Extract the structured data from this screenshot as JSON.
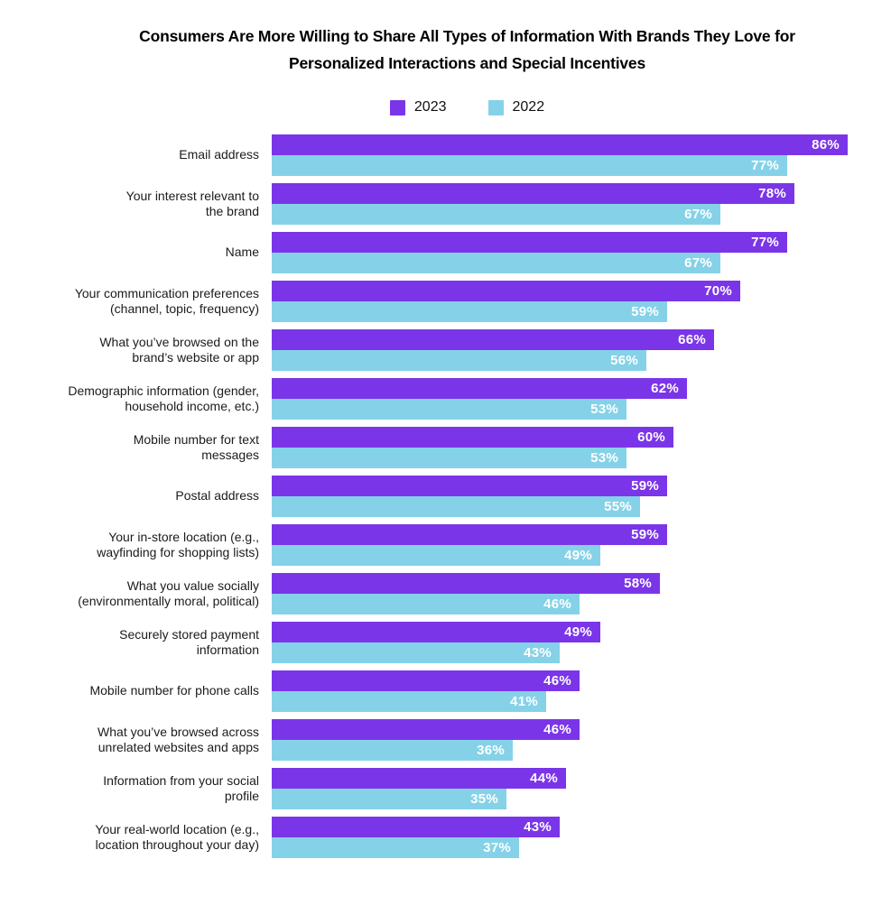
{
  "title": "Consumers Are More Willing to Share All Types of Information With Brands They Love for Personalized Interactions and Special Incentives",
  "legend": [
    {
      "label": "2023",
      "color": "#7B35E8"
    },
    {
      "label": "2022",
      "color": "#85D2E8"
    }
  ],
  "chart_data": {
    "type": "bar",
    "orientation": "horizontal",
    "title": "Consumers Are More Willing to Share All Types of Information With Brands They Love for Personalized Interactions and Special Incentives",
    "legend_position": "top",
    "grid": false,
    "value_labels": "inside-end",
    "value_suffix": "%",
    "xlim": [
      0,
      86
    ],
    "categories": [
      "Email address",
      "Your interest relevant to\nthe brand",
      "Name",
      "Your communication preferences\n(channel, topic, frequency)",
      "What you’ve browsed on the\nbrand’s website or app",
      "Demographic information (gender,\nhousehold income, etc.)",
      "Mobile number for text\nmessages",
      "Postal address",
      "Your in-store location (e.g.,\nwayfinding for shopping lists)",
      "What you value socially\n(environmentally moral, political)",
      "Securely stored payment\ninformation",
      "Mobile number for phone calls",
      "What you’ve browsed across\nunrelated websites and apps",
      "Information from your social\nprofile",
      "Your real-world location (e.g.,\nlocation throughout your day)"
    ],
    "series": [
      {
        "name": "2023",
        "color": "#7B35E8",
        "values": [
          86,
          78,
          77,
          70,
          66,
          62,
          60,
          59,
          59,
          58,
          49,
          46,
          46,
          44,
          43
        ]
      },
      {
        "name": "2022",
        "color": "#85D2E8",
        "values": [
          77,
          67,
          67,
          59,
          56,
          53,
          53,
          55,
          49,
          46,
          43,
          41,
          36,
          35,
          37
        ]
      }
    ]
  }
}
